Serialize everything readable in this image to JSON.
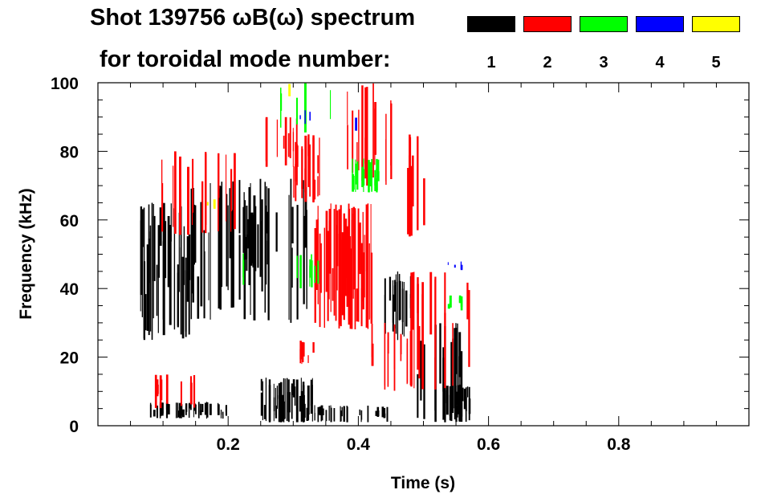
{
  "title_line1": "Shot 139756 ωB(ω) spectrum",
  "title_line2": "for toroidal mode number:",
  "legend": [
    {
      "label": "1",
      "color": "#000000"
    },
    {
      "label": "2",
      "color": "#ff0000"
    },
    {
      "label": "3",
      "color": "#00ff00"
    },
    {
      "label": "4",
      "color": "#0000ff"
    },
    {
      "label": "5",
      "color": "#ffff00"
    }
  ],
  "chart_data": {
    "type": "heatmap",
    "xlabel": "Time (s)",
    "ylabel": "Frequency (kHz)",
    "xlim": [
      0.0,
      1.0
    ],
    "ylim": [
      0,
      100
    ],
    "xticks": [
      {
        "value": 0.2,
        "label": "0.2"
      },
      {
        "value": 0.4,
        "label": "0.4"
      },
      {
        "value": 0.6,
        "label": "0.6"
      },
      {
        "value": 0.8,
        "label": "0.8"
      }
    ],
    "yticks": [
      {
        "value": 0,
        "label": "0"
      },
      {
        "value": 20,
        "label": "20"
      },
      {
        "value": 40,
        "label": "40"
      },
      {
        "value": 60,
        "label": "60"
      },
      {
        "value": 80,
        "label": "80"
      },
      {
        "value": 100,
        "label": "100"
      }
    ],
    "minor_ticks": {
      "x": 0.05,
      "y": 5
    },
    "grid": false,
    "data_time_range": [
      0.06,
      0.57
    ],
    "regions": [
      {
        "mode": 1,
        "t0": 0.065,
        "t1": 0.14,
        "f0": 25,
        "f1": 65,
        "density": 0.85
      },
      {
        "mode": 1,
        "t0": 0.08,
        "t1": 0.2,
        "f0": 2,
        "f1": 7,
        "density": 0.5
      },
      {
        "mode": 1,
        "t0": 0.14,
        "t1": 0.33,
        "f0": 30,
        "f1": 72,
        "density": 0.35
      },
      {
        "mode": 1,
        "t0": 0.22,
        "t1": 0.26,
        "f0": 45,
        "f1": 65,
        "density": 0.6
      },
      {
        "mode": 1,
        "t0": 0.25,
        "t1": 0.33,
        "f0": 1,
        "f1": 14,
        "density": 0.75
      },
      {
        "mode": 1,
        "t0": 0.32,
        "t1": 0.45,
        "f0": 1,
        "f1": 6,
        "density": 0.4
      },
      {
        "mode": 1,
        "t0": 0.44,
        "t1": 0.48,
        "f0": 25,
        "f1": 45,
        "density": 0.55
      },
      {
        "mode": 1,
        "t0": 0.48,
        "t1": 0.56,
        "f0": 1,
        "f1": 30,
        "density": 0.5
      },
      {
        "mode": 1,
        "t0": 0.53,
        "t1": 0.57,
        "f0": 1,
        "f1": 12,
        "density": 0.7
      },
      {
        "mode": 2,
        "t0": 0.33,
        "t1": 0.42,
        "f0": 28,
        "f1": 65,
        "density": 0.92
      },
      {
        "mode": 2,
        "t0": 0.38,
        "t1": 0.46,
        "f0": 70,
        "f1": 100,
        "density": 0.4
      },
      {
        "mode": 2,
        "t0": 0.3,
        "t1": 0.34,
        "f0": 65,
        "f1": 85,
        "density": 0.55
      },
      {
        "mode": 2,
        "t0": 0.25,
        "t1": 0.31,
        "f0": 75,
        "f1": 90,
        "density": 0.45
      },
      {
        "mode": 2,
        "t0": 0.46,
        "t1": 0.5,
        "f0": 55,
        "f1": 85,
        "density": 0.5
      },
      {
        "mode": 2,
        "t0": 0.48,
        "t1": 0.57,
        "f0": 10,
        "f1": 45,
        "density": 0.4
      },
      {
        "mode": 2,
        "t0": 0.09,
        "t1": 0.22,
        "f0": 55,
        "f1": 80,
        "density": 0.25
      },
      {
        "mode": 2,
        "t0": 0.08,
        "t1": 0.15,
        "f0": 5,
        "f1": 15,
        "density": 0.2
      },
      {
        "mode": 2,
        "t0": 0.31,
        "t1": 0.34,
        "f0": 18,
        "f1": 25,
        "density": 0.4
      },
      {
        "mode": 2,
        "t0": 0.42,
        "t1": 0.48,
        "f0": 10,
        "f1": 30,
        "density": 0.3
      },
      {
        "mode": 3,
        "t0": 0.39,
        "t1": 0.43,
        "f0": 68,
        "f1": 78,
        "density": 0.75
      },
      {
        "mode": 3,
        "t0": 0.3,
        "t1": 0.34,
        "f0": 40,
        "f1": 50,
        "density": 0.3
      },
      {
        "mode": 3,
        "t0": 0.27,
        "t1": 0.36,
        "f0": 85,
        "f1": 100,
        "density": 0.15
      },
      {
        "mode": 3,
        "t0": 0.53,
        "t1": 0.56,
        "f0": 33,
        "f1": 38,
        "density": 0.35
      },
      {
        "mode": 3,
        "t0": 0.21,
        "t1": 0.24,
        "f0": 40,
        "f1": 55,
        "density": 0.15
      },
      {
        "mode": 4,
        "t0": 0.31,
        "t1": 0.33,
        "f0": 88,
        "f1": 92,
        "density": 0.25
      },
      {
        "mode": 4,
        "t0": 0.38,
        "t1": 0.4,
        "f0": 85,
        "f1": 90,
        "density": 0.35
      },
      {
        "mode": 4,
        "t0": 0.53,
        "t1": 0.56,
        "f0": 45,
        "f1": 48,
        "density": 0.3
      },
      {
        "mode": 5,
        "t0": 0.29,
        "t1": 0.31,
        "f0": 96,
        "f1": 100,
        "density": 0.2
      },
      {
        "mode": 5,
        "t0": 0.16,
        "t1": 0.18,
        "f0": 63,
        "f1": 66,
        "density": 0.15
      }
    ]
  }
}
